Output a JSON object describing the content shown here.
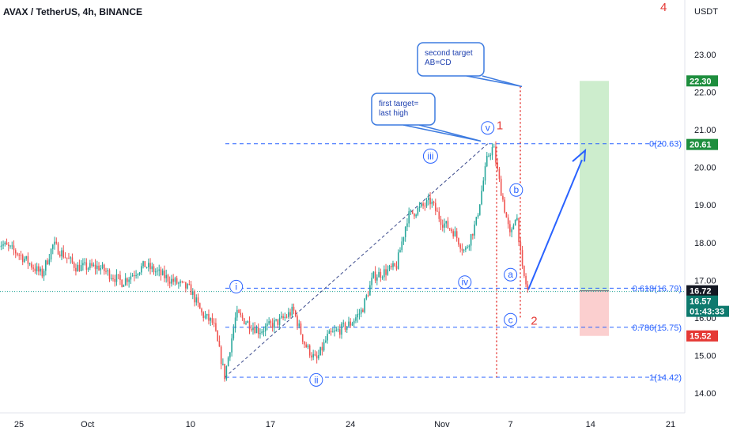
{
  "header": {
    "title": "AVAX / TetherUS, 4h, BINANCE",
    "corner_number": "4"
  },
  "colors": {
    "up": "#26a69a",
    "down": "#ef5350",
    "fib": "#2962ff",
    "wave": "#2962ff",
    "target_line": "#e53935",
    "profit_zone": "#c8ebc8",
    "loss_zone": "#fbcaca",
    "green_badge": "#1e8e3e",
    "red_badge": "#e53935",
    "dark_badge": "#131722",
    "teal_badge": "#0e7a6e"
  },
  "chart_data": {
    "type": "candlestick",
    "price_unit": "USDT",
    "y_range": [
      13.6,
      24.0
    ],
    "y_ticks": [
      14.0,
      15.0,
      16.0,
      17.0,
      18.0,
      19.0,
      20.0,
      21.0,
      22.0,
      23.0
    ],
    "y_tick_labels": [
      "14.00",
      "15.00",
      "16.00",
      "17.00",
      "18.00",
      "19.00",
      "20.00",
      "21.00",
      "22.00",
      "23.00"
    ],
    "x_tick_labels": [
      {
        "label": "25",
        "date": "2022-09-25"
      },
      {
        "label": "Oct",
        "date": "2022-10-01"
      },
      {
        "label": "10",
        "date": "2022-10-10"
      },
      {
        "label": "17",
        "date": "2022-10-17"
      },
      {
        "label": "24",
        "date": "2022-10-24"
      },
      {
        "label": "Nov",
        "date": "2022-11-01"
      },
      {
        "label": "7",
        "date": "2022-11-07"
      },
      {
        "label": "14",
        "date": "2022-11-14"
      },
      {
        "label": "21",
        "date": "2022-11-21"
      }
    ],
    "price_path": [
      {
        "date": "2022-09-23",
        "price": 18.05
      },
      {
        "date": "2022-09-25",
        "price": 17.7
      },
      {
        "date": "2022-09-27",
        "price": 17.15
      },
      {
        "date": "2022-09-28",
        "price": 17.95
      },
      {
        "date": "2022-09-30",
        "price": 17.35
      },
      {
        "date": "2022-10-02",
        "price": 17.35
      },
      {
        "date": "2022-10-04",
        "price": 16.95
      },
      {
        "date": "2022-10-06",
        "price": 17.4
      },
      {
        "date": "2022-10-08",
        "price": 17.05
      },
      {
        "date": "2022-10-10",
        "price": 16.75
      },
      {
        "date": "2022-10-11",
        "price": 16.1
      },
      {
        "date": "2022-10-12",
        "price": 15.85
      },
      {
        "date": "2022-10-13",
        "price": 14.45
      },
      {
        "date": "2022-10-14",
        "price": 16.1
      },
      {
        "date": "2022-10-16",
        "price": 15.65
      },
      {
        "date": "2022-10-18",
        "price": 15.95
      },
      {
        "date": "2022-10-19",
        "price": 16.2
      },
      {
        "date": "2022-10-20",
        "price": 15.3
      },
      {
        "date": "2022-10-21",
        "price": 14.85
      },
      {
        "date": "2022-10-22",
        "price": 15.5
      },
      {
        "date": "2022-10-24",
        "price": 15.85
      },
      {
        "date": "2022-10-25",
        "price": 16.2
      },
      {
        "date": "2022-10-26",
        "price": 17.1
      },
      {
        "date": "2022-10-28",
        "price": 17.35
      },
      {
        "date": "2022-10-29",
        "price": 18.7
      },
      {
        "date": "2022-10-31",
        "price": 19.1
      },
      {
        "date": "2022-11-01",
        "price": 18.55
      },
      {
        "date": "2022-11-02",
        "price": 18.3
      },
      {
        "date": "2022-11-03",
        "price": 17.75
      },
      {
        "date": "2022-11-04",
        "price": 18.55
      },
      {
        "date": "2022-11-05",
        "price": 20.3
      },
      {
        "date": "2022-11-05T12",
        "price": 20.55
      },
      {
        "date": "2022-11-06",
        "price": 19.65
      },
      {
        "date": "2022-11-07",
        "price": 18.1
      },
      {
        "date": "2022-11-07T12",
        "price": 18.85
      },
      {
        "date": "2022-11-08",
        "price": 17.3
      },
      {
        "date": "2022-11-08T12",
        "price": 16.72
      }
    ],
    "fib_levels": [
      {
        "label": "0(20.63)",
        "price": 20.63
      },
      {
        "label": "0.618(16.79)",
        "price": 16.79
      },
      {
        "label": "0.786(15.75)",
        "price": 15.75
      },
      {
        "label": "1(14.42)",
        "price": 14.42
      }
    ],
    "waves": [
      {
        "label": "i",
        "date": "2022-10-14",
        "price": 16.83
      },
      {
        "label": "ii",
        "date": "2022-10-21",
        "price": 14.35
      },
      {
        "label": "iii",
        "date": "2022-10-31",
        "price": 20.3
      },
      {
        "label": "iv",
        "date": "2022-11-03",
        "price": 16.95
      },
      {
        "label": "v",
        "date": "2022-11-05",
        "price": 21.05
      },
      {
        "label": "a",
        "date": "2022-11-07",
        "price": 17.15
      },
      {
        "label": "b",
        "date": "2022-11-07T12",
        "price": 19.4
      },
      {
        "label": "c",
        "date": "2022-11-07",
        "price": 15.95
      }
    ],
    "red_labels": [
      {
        "label": "1",
        "date": "2022-11-05T12",
        "price": 21.1
      },
      {
        "label": "2",
        "date": "2022-11-08T12",
        "price": 15.9
      }
    ],
    "callouts": [
      {
        "lines": [
          "first target=",
          "last high"
        ]
      },
      {
        "lines": [
          "second target",
          "AB=CD"
        ]
      }
    ],
    "price_badges": [
      {
        "text": "22.30",
        "price": 22.3,
        "style": "green"
      },
      {
        "text": "20.61",
        "price": 20.61,
        "style": "green"
      },
      {
        "text": "16.72",
        "price": 16.72,
        "style": "dark"
      },
      {
        "text": "16.57",
        "price": 16.57,
        "style": "teal"
      },
      {
        "text": "01:43:33",
        "price": 16.38,
        "style": "teal"
      },
      {
        "text": "15.52",
        "price": 15.52,
        "style": "red"
      }
    ],
    "position": {
      "entry": 16.72,
      "target": 22.3,
      "stop": 15.52
    }
  }
}
